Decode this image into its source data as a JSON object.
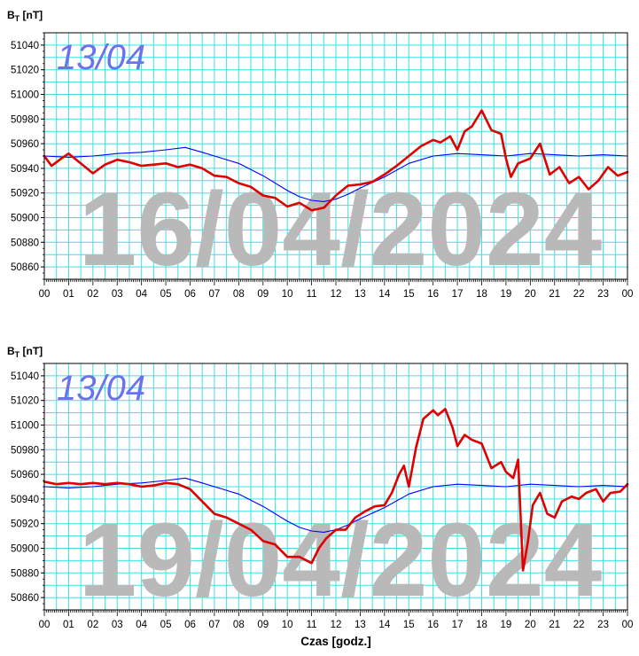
{
  "chart_data": [
    {
      "type": "line",
      "ylabel_main": "B",
      "ylabel_sub": "T",
      "ylabel_unit": "[nT]",
      "watermark": "16/04/2024",
      "reference_label": "13/04",
      "ylim": [
        50850,
        51050
      ],
      "yticks": [
        50860,
        50880,
        50900,
        50920,
        50940,
        50960,
        50980,
        51000,
        51020,
        51040
      ],
      "xlim": [
        0,
        24
      ],
      "xticklabels": [
        "00",
        "01",
        "02",
        "03",
        "04",
        "05",
        "06",
        "07",
        "08",
        "09",
        "10",
        "11",
        "12",
        "13",
        "14",
        "15",
        "16",
        "17",
        "18",
        "19",
        "20",
        "21",
        "22",
        "23",
        "00"
      ],
      "grid": true,
      "series": [
        {
          "color": "#0000ff",
          "x": [
            0,
            1,
            2,
            3,
            4,
            5,
            5.8,
            6.5,
            7,
            8,
            9,
            10,
            10.5,
            11,
            11.5,
            12,
            12.5,
            13,
            14,
            15,
            16,
            17,
            18,
            19,
            20,
            21,
            22,
            23,
            24
          ],
          "y": [
            50950,
            50949,
            50950,
            50952,
            50953,
            50955,
            50957,
            50953,
            50950,
            50944,
            50934,
            50922,
            50917,
            50914,
            50913,
            50915,
            50919,
            50924,
            50933,
            50944,
            50950,
            50952,
            50951,
            50950,
            50952,
            50951,
            50950,
            50951,
            50950
          ]
        },
        {
          "color": "#e00000",
          "x": [
            0,
            0.3,
            0.7,
            1,
            1.5,
            2,
            2.5,
            3,
            3.5,
            4,
            4.5,
            5,
            5.5,
            6,
            6.5,
            7,
            7.5,
            8,
            8.5,
            9,
            9.5,
            10,
            10.5,
            11,
            11.5,
            12,
            12.5,
            13,
            13.5,
            14,
            14.5,
            15,
            15.5,
            16,
            16.3,
            16.7,
            17,
            17.3,
            17.6,
            18,
            18.4,
            18.8,
            19,
            19.2,
            19.5,
            20,
            20.4,
            20.8,
            21.2,
            21.6,
            22,
            22.4,
            22.8,
            23.2,
            23.6,
            24
          ],
          "y": [
            50950,
            50942,
            50948,
            50952,
            50944,
            50936,
            50943,
            50947,
            50945,
            50942,
            50943,
            50944,
            50941,
            50943,
            50940,
            50934,
            50933,
            50928,
            50925,
            50918,
            50916,
            50909,
            50912,
            50906,
            50908,
            50918,
            50926,
            50927,
            50929,
            50935,
            50942,
            50950,
            50958,
            50963,
            50961,
            50966,
            50955,
            50970,
            50974,
            50987,
            50971,
            50968,
            50948,
            50933,
            50944,
            50948,
            50960,
            50935,
            50941,
            50928,
            50933,
            50923,
            50930,
            50941,
            50934,
            50937
          ]
        }
      ]
    },
    {
      "type": "line",
      "ylabel_main": "B",
      "ylabel_sub": "T",
      "ylabel_unit": "[nT]",
      "watermark": "19/04/2024",
      "reference_label": "13/04",
      "xlabel": "Czas [godz.]",
      "ylim": [
        50850,
        51050
      ],
      "yticks": [
        50860,
        50880,
        50900,
        50920,
        50940,
        50960,
        50980,
        51000,
        51020,
        51040
      ],
      "xlim": [
        0,
        24
      ],
      "xticklabels": [
        "00",
        "01",
        "02",
        "03",
        "04",
        "05",
        "06",
        "07",
        "08",
        "09",
        "10",
        "11",
        "12",
        "13",
        "14",
        "15",
        "16",
        "17",
        "18",
        "19",
        "20",
        "21",
        "22",
        "23",
        "00"
      ],
      "grid": true,
      "series": [
        {
          "color": "#0000ff",
          "x": [
            0,
            1,
            2,
            3,
            4,
            5,
            5.8,
            6.5,
            7,
            8,
            9,
            10,
            10.5,
            11,
            11.5,
            12,
            12.5,
            13,
            14,
            15,
            16,
            17,
            18,
            19,
            20,
            21,
            22,
            23,
            24
          ],
          "y": [
            50950,
            50949,
            50950,
            50952,
            50953,
            50955,
            50957,
            50953,
            50950,
            50944,
            50934,
            50922,
            50917,
            50914,
            50913,
            50915,
            50919,
            50924,
            50933,
            50944,
            50950,
            50952,
            50951,
            50950,
            50952,
            50951,
            50950,
            50951,
            50950
          ]
        },
        {
          "color": "#e00000",
          "x": [
            0,
            0.5,
            1,
            1.5,
            2,
            2.5,
            3,
            3.5,
            4,
            4.5,
            5,
            5.5,
            6,
            6.5,
            7,
            7.5,
            8,
            8.5,
            9,
            9.5,
            10,
            10.5,
            11,
            11.3,
            11.6,
            12,
            12.4,
            12.8,
            13.2,
            13.6,
            14,
            14.3,
            14.6,
            14.8,
            15,
            15.3,
            15.6,
            16,
            16.2,
            16.5,
            16.8,
            17,
            17.3,
            17.6,
            18,
            18.4,
            18.8,
            19,
            19.3,
            19.5,
            19.7,
            19.9,
            20.1,
            20.4,
            20.7,
            21,
            21.3,
            21.7,
            22,
            22.3,
            22.7,
            23,
            23.3,
            23.7,
            24
          ],
          "y": [
            50954,
            50952,
            50953,
            50952,
            50953,
            50952,
            50953,
            50952,
            50950,
            50951,
            50953,
            50952,
            50948,
            50938,
            50928,
            50925,
            50920,
            50915,
            50906,
            50903,
            50893,
            50893,
            50888,
            50900,
            50908,
            50915,
            50915,
            50925,
            50930,
            50934,
            50935,
            50945,
            50960,
            50967,
            50950,
            50982,
            51005,
            51012,
            51008,
            51013,
            50998,
            50983,
            50992,
            50988,
            50985,
            50965,
            50970,
            50962,
            50957,
            50972,
            50882,
            50905,
            50935,
            50945,
            50928,
            50925,
            50938,
            50942,
            50940,
            50945,
            50948,
            50938,
            50945,
            50946,
            50952
          ]
        }
      ]
    }
  ]
}
